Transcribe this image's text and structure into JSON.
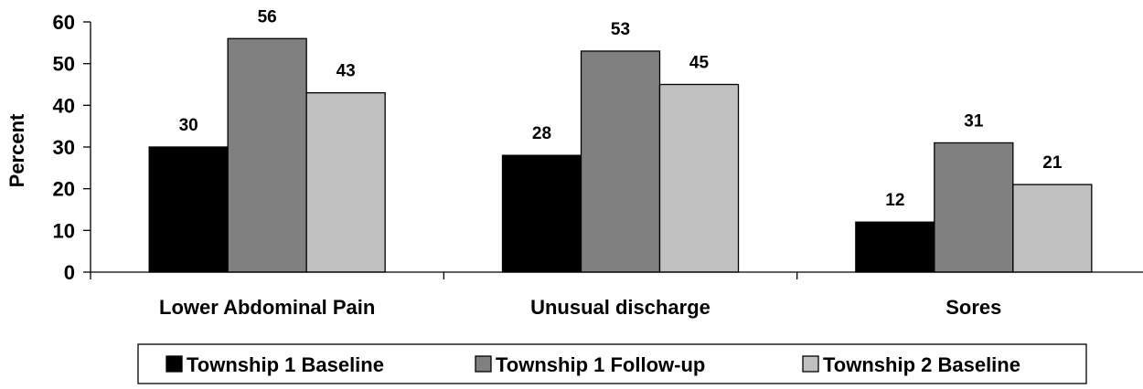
{
  "chart_data": {
    "type": "bar",
    "categories": [
      "Lower Abdominal Pain",
      "Unusual discharge",
      "Sores"
    ],
    "series": [
      {
        "name": "Township 1 Baseline",
        "values": [
          30,
          28,
          12
        ],
        "color": "#000000"
      },
      {
        "name": "Township 1 Follow-up",
        "values": [
          56,
          53,
          31
        ],
        "color": "#808080"
      },
      {
        "name": "Township 2 Baseline",
        "values": [
          43,
          45,
          21
        ],
        "color": "#c0c0c0"
      }
    ],
    "title": "",
    "xlabel": "",
    "ylabel": "Percent",
    "ylim": [
      0,
      60
    ],
    "yticks": [
      0,
      10,
      20,
      30,
      40,
      50,
      60
    ],
    "grid": false,
    "data_labels": true,
    "legend_position": "bottom"
  }
}
